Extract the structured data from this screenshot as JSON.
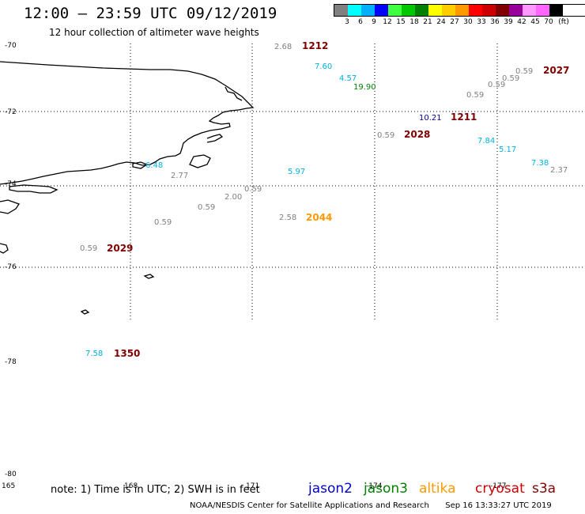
{
  "title": "12:00 – 23:59 UTC 09/12/2019",
  "subtitle": "12 hour collection of altimeter wave heights",
  "legend": {
    "unit": "(ft)",
    "colors": [
      "#808080",
      "#00ffff",
      "#00b0ff",
      "#0000ff",
      "#40ff40",
      "#00c800",
      "#008000",
      "#ffff00",
      "#ffcc00",
      "#ff9900",
      "#ff0000",
      "#cc0000",
      "#800000",
      "#990099",
      "#ff99ff",
      "#ff66ff",
      "#000000"
    ],
    "ticks": [
      "3",
      "6",
      "9",
      "12",
      "15",
      "18",
      "21",
      "24",
      "27",
      "30",
      "33",
      "36",
      "39",
      "42",
      "45",
      "70"
    ]
  },
  "axes": {
    "lat_labels": [
      "-70",
      "-72",
      "-74",
      "-76",
      "-78",
      "-80"
    ],
    "lon_labels": [
      "165",
      "168",
      "171",
      "-174",
      "-177"
    ]
  },
  "observations": [
    {
      "v": "2.68",
      "c": "#808080"
    },
    {
      "v": "7.60",
      "c": "#00b0e0"
    },
    {
      "v": "4.57",
      "c": "#00b0e0"
    },
    {
      "v": "19.90",
      "c": "#008000"
    },
    {
      "v": "0.59",
      "c": "#808080"
    },
    {
      "v": "0.59",
      "c": "#808080"
    },
    {
      "v": "0.59",
      "c": "#808080"
    },
    {
      "v": "0.59",
      "c": "#808080"
    },
    {
      "v": "10.21",
      "c": "#000090"
    },
    {
      "v": "0.59",
      "c": "#808080"
    },
    {
      "v": "7.84",
      "c": "#00b0e0"
    },
    {
      "v": "5.17",
      "c": "#00b0e0"
    },
    {
      "v": "7.38",
      "c": "#00b0e0"
    },
    {
      "v": "2.37",
      "c": "#808080"
    },
    {
      "v": "6.48",
      "c": "#00b0e0"
    },
    {
      "v": "2.77",
      "c": "#808080"
    },
    {
      "v": "5.97",
      "c": "#00b0e0"
    },
    {
      "v": "0.59",
      "c": "#808080"
    },
    {
      "v": "2.00",
      "c": "#808080"
    },
    {
      "v": "0.59",
      "c": "#808080"
    },
    {
      "v": "0.59",
      "c": "#808080"
    },
    {
      "v": "2.58",
      "c": "#808080"
    },
    {
      "v": "0.59",
      "c": "#808080"
    },
    {
      "v": "7.58",
      "c": "#00b0e0"
    }
  ],
  "pass_times": [
    {
      "t": "1212",
      "c": "#800000"
    },
    {
      "t": "2027",
      "c": "#800000"
    },
    {
      "t": "1211",
      "c": "#800000"
    },
    {
      "t": "2028",
      "c": "#800000"
    },
    {
      "t": "2044",
      "c": "#ff9900"
    },
    {
      "t": "2029",
      "c": "#800000"
    },
    {
      "t": "1350",
      "c": "#800000"
    }
  ],
  "footnote": "note: 1) Time is in UTC; 2) SWH is in feet",
  "satellites": [
    {
      "name": "jason2",
      "color": "#0000cc"
    },
    {
      "name": "jason3",
      "color": "#008000"
    },
    {
      "name": "altika",
      "color": "#ff9900"
    },
    {
      "name": "cryosat",
      "color": "#cc0000"
    },
    {
      "name": "s3a",
      "color": "#800000"
    }
  ],
  "credit": "NOAA/NESDIS Center for Satellite Applications and Research",
  "generated": "Sep 16 13:33:27 UTC 2019"
}
